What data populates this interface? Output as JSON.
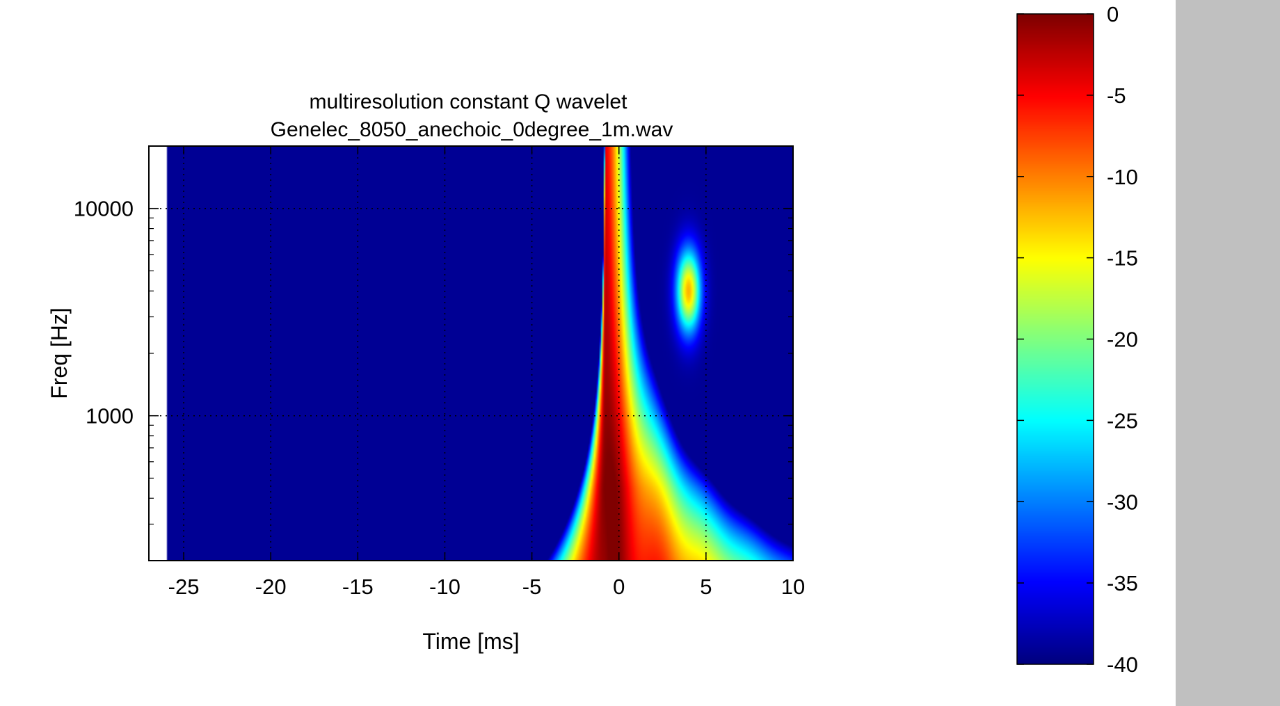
{
  "chart_data": {
    "type": "heatmap",
    "title": "multiresolution constant Q wavelet",
    "subtitle": "Genelec_8050_anechoic_0degree_1m.wav",
    "xlabel": "Time [ms]",
    "ylabel": "Freq [Hz]",
    "xlim": [
      -27,
      10
    ],
    "ylim": [
      200,
      20000
    ],
    "yscale": "log",
    "x_ticks": [
      -25,
      -20,
      -15,
      -10,
      -5,
      0,
      5,
      10
    ],
    "x_tick_labels": [
      "-25",
      "-20",
      "-15",
      "-10",
      "-5",
      "0",
      "5",
      "10"
    ],
    "y_ticks": [
      1000,
      10000
    ],
    "y_tick_labels": [
      "1000",
      "10000"
    ],
    "grid": true,
    "data_start_ms": -26,
    "colorbar": {
      "range": [
        -40,
        0
      ],
      "ticks": [
        0,
        -5,
        -10,
        -15,
        -20,
        -25,
        -30,
        -35,
        -40
      ],
      "tick_labels": [
        "0",
        "-5",
        "-10",
        "-15",
        "-20",
        "-25",
        "-30",
        "-35",
        "-40"
      ],
      "colormap": "jet"
    },
    "features": {
      "impulse_ridge_time_ms": -0.8,
      "peak_time_ms": -0.3,
      "peak_freq_hz": 450,
      "late_resonance_time_ms": 4,
      "late_resonance_freq_hz": 4000
    }
  },
  "colors": {
    "background_plot": "#00007f",
    "side_panel": "#c0c0c0"
  }
}
